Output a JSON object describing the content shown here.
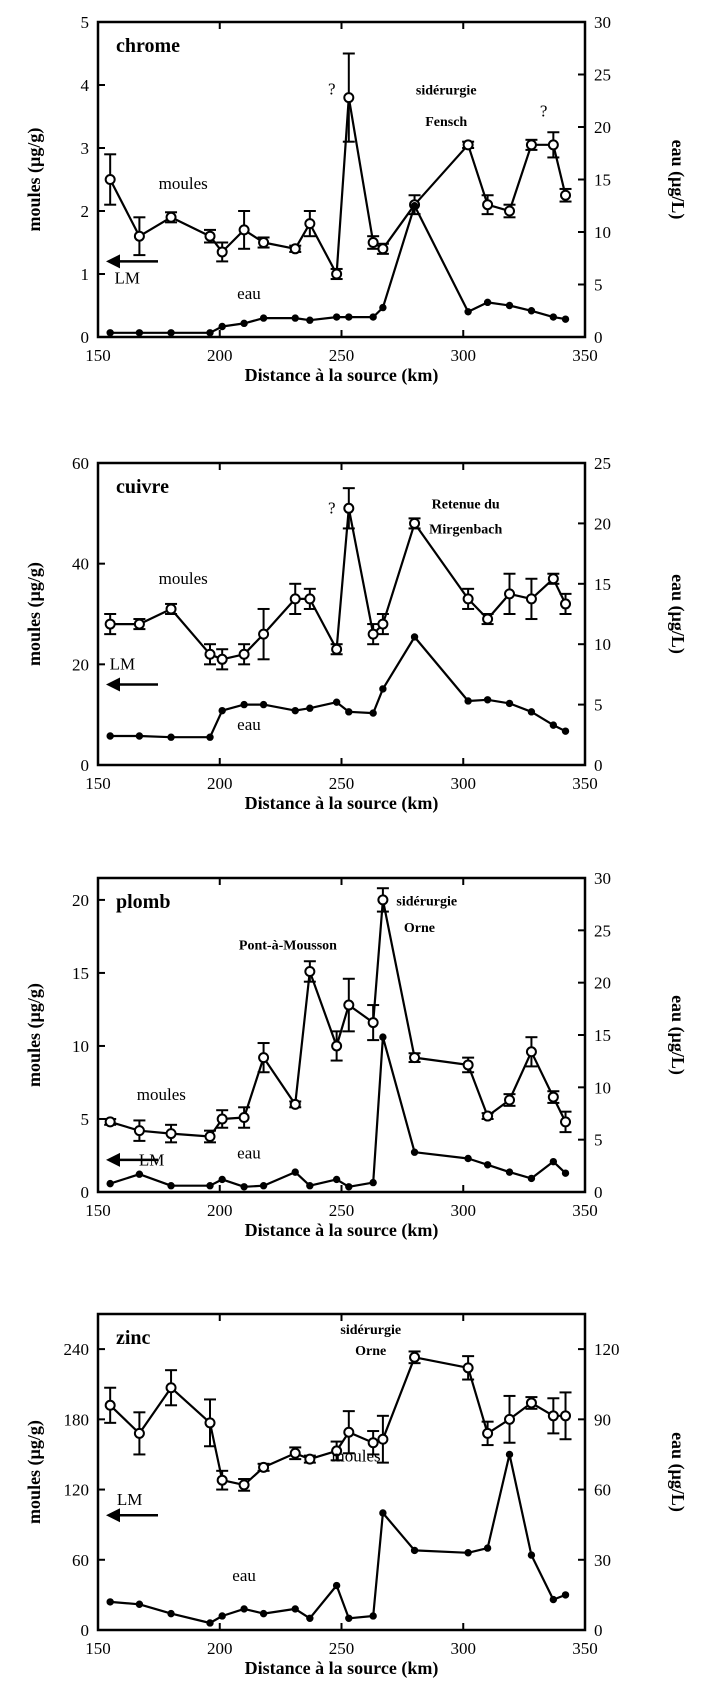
{
  "chart_data": [
    {
      "type": "line",
      "panel_title": "chrome",
      "xlabel": "Distance à la source (km)",
      "ylabel_left": "moules (µg/g)",
      "ylabel_right": "eau (µg/L)",
      "xlim": [
        150,
        350
      ],
      "ylim_left": [
        0,
        5
      ],
      "ylim_right": [
        0,
        30
      ],
      "xticks": [
        150,
        200,
        250,
        300,
        350
      ],
      "yticks_left": [
        0,
        1,
        2,
        3,
        4,
        5
      ],
      "yticks_right": [
        0,
        5,
        10,
        15,
        20,
        25,
        30
      ],
      "series": [
        {
          "name": "moules",
          "axis": "left",
          "x": [
            155,
            167,
            180,
            196,
            201,
            210,
            218,
            231,
            237,
            248,
            253,
            263,
            267,
            280,
            302,
            310,
            319,
            328,
            337,
            342
          ],
          "y": [
            2.5,
            1.6,
            1.9,
            1.6,
            1.35,
            1.7,
            1.5,
            1.4,
            1.8,
            1.0,
            3.8,
            1.5,
            1.4,
            2.1,
            3.05,
            2.1,
            2.0,
            3.05,
            3.05,
            2.25
          ],
          "err": [
            0.4,
            0.3,
            0.08,
            0.1,
            0.15,
            0.3,
            0.08,
            0.05,
            0.2,
            0.08,
            0.7,
            0.1,
            0.08,
            0.15,
            0.05,
            0.15,
            0.1,
            0.08,
            0.2,
            0.1
          ]
        },
        {
          "name": "eau",
          "axis": "right",
          "x": [
            155,
            167,
            180,
            196,
            201,
            210,
            218,
            231,
            237,
            248,
            253,
            263,
            267,
            280,
            302,
            310,
            319,
            328,
            337,
            342
          ],
          "y": [
            0.4,
            0.4,
            0.4,
            0.4,
            1.0,
            1.3,
            1.8,
            1.8,
            1.6,
            1.9,
            1.9,
            1.9,
            2.8,
            12.5,
            2.4,
            3.3,
            3.0,
            2.5,
            1.9,
            1.7
          ]
        }
      ],
      "annotations": [
        {
          "text": "moules",
          "x": 185,
          "y": 2.35
        },
        {
          "text": "eau",
          "x": 212,
          "y": 0.6
        },
        {
          "text": "LM",
          "x": 162,
          "y": 0.85
        },
        {
          "text": "?",
          "x": 246,
          "y": 3.85
        },
        {
          "text": "sidérurgie",
          "x": 293,
          "y": 3.85
        },
        {
          "text": "Fensch",
          "x": 293,
          "y": 3.35
        },
        {
          "text": "?",
          "x": 333,
          "y": 3.5
        }
      ],
      "lm_arrow_y": 1.2
    },
    {
      "type": "line",
      "panel_title": "cuivre",
      "xlabel": "Distance à la source (km)",
      "ylabel_left": "moules (µg/g)",
      "ylabel_right": "eau (µg/L)",
      "xlim": [
        150,
        350
      ],
      "ylim_left": [
        0,
        60
      ],
      "ylim_right": [
        0,
        25
      ],
      "xticks": [
        150,
        200,
        250,
        300,
        350
      ],
      "yticks_left": [
        0,
        20,
        40,
        60
      ],
      "yticks_right": [
        0,
        5,
        10,
        15,
        20,
        25
      ],
      "series": [
        {
          "name": "moules",
          "axis": "left",
          "x": [
            155,
            167,
            180,
            196,
            201,
            210,
            218,
            231,
            237,
            248,
            253,
            263,
            267,
            280,
            302,
            310,
            319,
            328,
            337,
            342
          ],
          "y": [
            28,
            28,
            31,
            22,
            21,
            22,
            26,
            33,
            33,
            23,
            51,
            26,
            28,
            48,
            33,
            29,
            34,
            33,
            37,
            32
          ],
          "err": [
            2,
            1,
            1,
            2,
            2,
            2,
            5,
            3,
            2,
            1,
            4,
            2,
            2,
            1,
            2,
            1,
            4,
            4,
            1,
            2
          ]
        },
        {
          "name": "eau",
          "axis": "right",
          "x": [
            155,
            167,
            180,
            196,
            201,
            210,
            218,
            231,
            237,
            248,
            253,
            263,
            267,
            280,
            302,
            310,
            319,
            328,
            337,
            342
          ],
          "y": [
            2.4,
            2.4,
            2.3,
            2.3,
            4.5,
            5.0,
            5.0,
            4.5,
            4.7,
            5.2,
            4.4,
            4.3,
            6.3,
            10.6,
            5.3,
            5.4,
            5.1,
            4.4,
            3.3,
            2.8
          ]
        }
      ],
      "annotations": [
        {
          "text": "moules",
          "x": 185,
          "y": 36
        },
        {
          "text": "eau",
          "x": 212,
          "y": 7
        },
        {
          "text": "LM",
          "x": 160,
          "y": 19
        },
        {
          "text": "?",
          "x": 246,
          "y": 50
        },
        {
          "text": "Retenue du",
          "x": 301,
          "y": 51
        },
        {
          "text": "Mirgenbach",
          "x": 301,
          "y": 46
        }
      ],
      "lm_arrow_y": 16
    },
    {
      "type": "line",
      "panel_title": "plomb",
      "xlabel": "Distance à la source (km)",
      "ylabel_left": "moules (µg/g)",
      "ylabel_right": "eau (µg/L)",
      "xlim": [
        150,
        350
      ],
      "ylim_left": [
        0,
        21.5
      ],
      "ylim_right": [
        0,
        30
      ],
      "xticks": [
        150,
        200,
        250,
        300,
        350
      ],
      "yticks_left": [
        0,
        5,
        10,
        15,
        20
      ],
      "yticks_right": [
        0,
        5,
        10,
        15,
        20,
        25,
        30
      ],
      "series": [
        {
          "name": "moules",
          "axis": "left",
          "x": [
            155,
            167,
            180,
            196,
            201,
            210,
            218,
            231,
            237,
            248,
            253,
            263,
            267,
            280,
            302,
            310,
            319,
            328,
            337,
            342
          ],
          "y": [
            4.8,
            4.2,
            4.0,
            3.8,
            5.0,
            5.1,
            9.2,
            6.0,
            15.1,
            10.0,
            12.8,
            11.6,
            20.0,
            9.2,
            8.7,
            5.2,
            6.3,
            9.6,
            6.5,
            4.8
          ],
          "err": [
            0.2,
            0.7,
            0.6,
            0.4,
            0.6,
            0.7,
            1.0,
            0.2,
            0.7,
            1.0,
            1.8,
            1.2,
            0.8,
            0.3,
            0.5,
            0.2,
            0.4,
            1.0,
            0.4,
            0.7
          ]
        },
        {
          "name": "eau",
          "axis": "right",
          "x": [
            155,
            167,
            180,
            196,
            201,
            210,
            218,
            231,
            237,
            248,
            253,
            263,
            267,
            280,
            302,
            310,
            319,
            328,
            337,
            342
          ],
          "y": [
            0.8,
            1.7,
            0.6,
            0.6,
            1.2,
            0.5,
            0.6,
            1.9,
            0.6,
            1.2,
            0.5,
            0.9,
            14.8,
            3.8,
            3.2,
            2.6,
            1.9,
            1.3,
            2.9,
            1.8
          ]
        }
      ],
      "annotations": [
        {
          "text": "moules",
          "x": 176,
          "y": 6.3
        },
        {
          "text": "eau",
          "x": 212,
          "y": 2.3
        },
        {
          "text": "LM",
          "x": 172,
          "y": 1.8
        },
        {
          "text": "Pont-à-Mousson",
          "x": 228,
          "y": 16.6
        },
        {
          "text": "sidérurgie",
          "x": 285,
          "y": 19.6
        },
        {
          "text": "Orne",
          "x": 282,
          "y": 17.8
        }
      ],
      "lm_arrow_y": 2.2
    },
    {
      "type": "line",
      "panel_title": "zinc",
      "xlabel": "Distance à la source (km)",
      "ylabel_left": "moules (µg/g)",
      "ylabel_right": "eau (µg/L)",
      "xlim": [
        150,
        350
      ],
      "ylim_left": [
        0,
        270
      ],
      "ylim_right": [
        0,
        135
      ],
      "xticks": [
        150,
        200,
        250,
        300,
        350
      ],
      "yticks_left": [
        0,
        60,
        120,
        180,
        240
      ],
      "yticks_right": [
        0,
        30,
        60,
        90,
        120
      ],
      "series": [
        {
          "name": "moules",
          "axis": "left",
          "x": [
            155,
            167,
            180,
            196,
            201,
            210,
            218,
            231,
            237,
            248,
            253,
            263,
            267,
            280,
            302,
            310,
            319,
            328,
            337,
            342
          ],
          "y": [
            192,
            168,
            207,
            177,
            128,
            124,
            139,
            151,
            146,
            153,
            169,
            160,
            163,
            233,
            224,
            168,
            180,
            194,
            183,
            183
          ],
          "err": [
            15,
            18,
            15,
            20,
            8,
            5,
            3,
            5,
            3,
            8,
            18,
            10,
            20,
            5,
            10,
            10,
            20,
            5,
            15,
            20
          ]
        },
        {
          "name": "eau",
          "axis": "right",
          "x": [
            155,
            167,
            180,
            196,
            201,
            210,
            218,
            231,
            237,
            248,
            253,
            263,
            267,
            280,
            302,
            310,
            319,
            328,
            337,
            342
          ],
          "y": [
            12,
            11,
            7,
            3,
            6,
            9,
            7,
            9,
            5,
            19,
            5,
            6,
            50,
            34,
            33,
            35,
            75,
            32,
            13,
            15
          ]
        }
      ],
      "annotations": [
        {
          "text": "moules",
          "x": 256,
          "y": 144
        },
        {
          "text": "eau",
          "x": 210,
          "y": 42
        },
        {
          "text": "LM",
          "x": 163,
          "y": 107
        },
        {
          "text": "sidérurgie",
          "x": 262,
          "y": 253
        },
        {
          "text": "Orne",
          "x": 262,
          "y": 235
        }
      ],
      "lm_arrow_y": 98
    }
  ]
}
